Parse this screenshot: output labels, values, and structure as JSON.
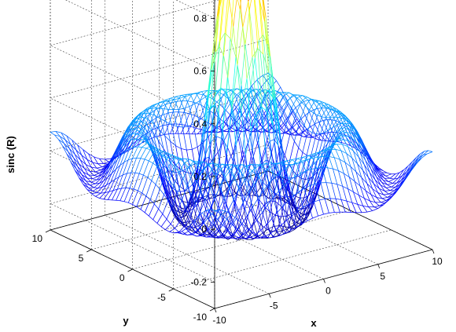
{
  "chart_data": {
    "type": "surface",
    "style": "mesh",
    "function": "sin(R)/R, R = sqrt(x^2 + y^2)",
    "colormap": "jet",
    "grid": true,
    "x": {
      "min": -10,
      "max": 10,
      "step": 0.5
    },
    "y": {
      "min": -10,
      "max": 10,
      "step": 0.5
    },
    "xlabel": "x",
    "ylabel": "y",
    "zlabel": "sinc (R)",
    "xlim": [
      -10,
      10
    ],
    "ylim": [
      -10,
      10
    ],
    "zlim": [
      -0.3,
      1.0
    ],
    "xticks": [
      -10,
      -5,
      0,
      5,
      10
    ],
    "yticks": [
      -10,
      -5,
      0,
      5,
      10
    ],
    "zticks": [
      -0.2,
      0,
      0.2,
      0.4,
      0.6,
      0.8
    ],
    "xtick_labels": [
      "-10",
      "-5",
      "0",
      "5",
      "10"
    ],
    "ytick_labels": [
      "-10",
      "-5",
      "0",
      "5",
      "10"
    ],
    "ztick_labels": [
      "-0.2",
      "0",
      "0.2",
      "0.4",
      "0.6",
      "0.8"
    ]
  }
}
